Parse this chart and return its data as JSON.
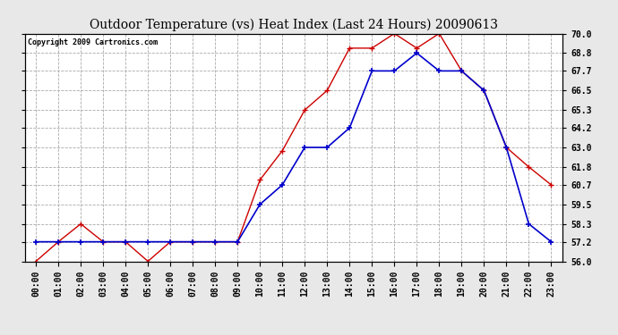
{
  "title": "Outdoor Temperature (vs) Heat Index (Last 24 Hours) 20090613",
  "copyright": "Copyright 2009 Cartronics.com",
  "hours": [
    "00:00",
    "01:00",
    "02:00",
    "03:00",
    "04:00",
    "05:00",
    "06:00",
    "07:00",
    "08:00",
    "09:00",
    "10:00",
    "11:00",
    "12:00",
    "13:00",
    "14:00",
    "15:00",
    "16:00",
    "17:00",
    "18:00",
    "19:00",
    "20:00",
    "21:00",
    "22:00",
    "23:00"
  ],
  "red_data": [
    56.0,
    57.2,
    58.3,
    57.2,
    57.2,
    56.0,
    57.2,
    57.2,
    57.2,
    57.2,
    61.0,
    62.8,
    65.3,
    66.5,
    69.1,
    69.1,
    70.0,
    69.1,
    70.0,
    67.7,
    66.5,
    63.0,
    61.8,
    60.7
  ],
  "blue_data": [
    57.2,
    57.2,
    57.2,
    57.2,
    57.2,
    57.2,
    57.2,
    57.2,
    57.2,
    57.2,
    59.5,
    60.7,
    63.0,
    63.0,
    64.2,
    67.7,
    67.7,
    68.8,
    67.7,
    67.7,
    66.5,
    63.0,
    58.3,
    57.2
  ],
  "ylim": [
    56.0,
    70.0
  ],
  "yticks": [
    56.0,
    57.2,
    58.3,
    59.5,
    60.7,
    61.8,
    63.0,
    64.2,
    65.3,
    66.5,
    67.7,
    68.8,
    70.0
  ],
  "red_color": "#cc0000",
  "blue_color": "#0000cc",
  "bg_color": "#e8e8e8",
  "plot_bg_color": "#ffffff",
  "grid_color": "#aaaaaa",
  "title_fontsize": 10,
  "tick_fontsize": 7,
  "copyright_fontsize": 6
}
